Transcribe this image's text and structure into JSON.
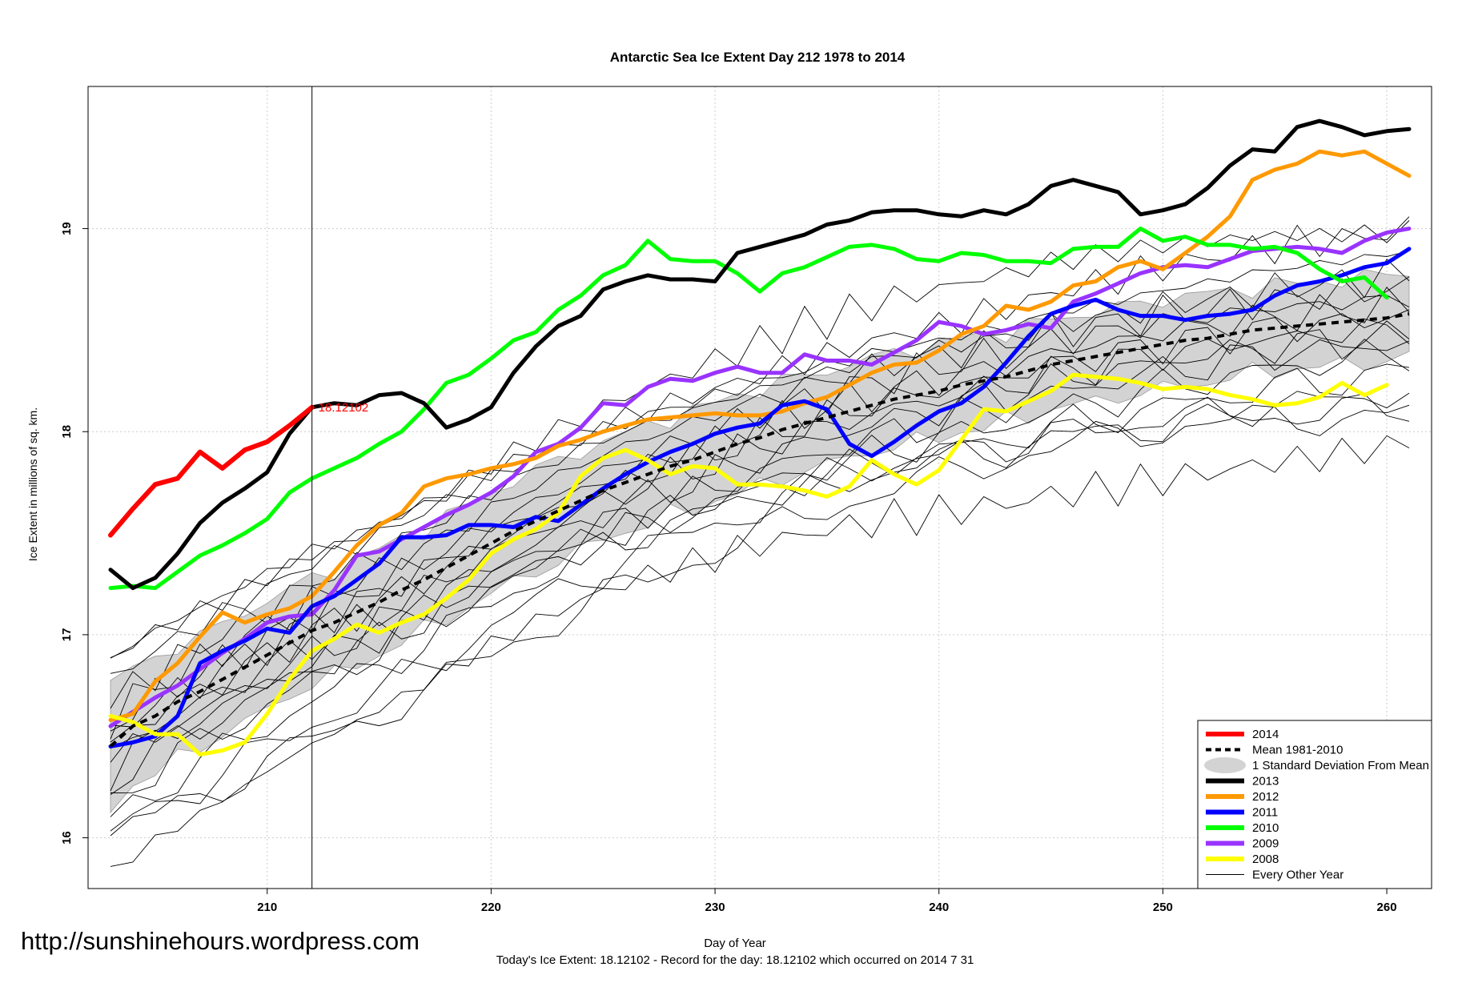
{
  "chart_data": {
    "type": "line",
    "title": "Antarctic Sea Ice Extent Day 212 1978 to 2014",
    "xlabel": "Day of Year",
    "ylabel": "Ice Extent in millions of sq. km.",
    "xlim": [
      202,
      262
    ],
    "ylim": [
      15.75,
      19.7
    ],
    "xticks": [
      210,
      220,
      230,
      240,
      250,
      260
    ],
    "yticks": [
      16,
      17,
      18,
      19
    ],
    "grid": true,
    "legend_position": "bottom-right",
    "current_day_marker": 212,
    "current_value_label": "18.12102",
    "legend": [
      {
        "label": "2014",
        "color": "#ff0000",
        "style": "thick"
      },
      {
        "label": "Mean 1981-2010",
        "color": "#000000",
        "style": "dashed"
      },
      {
        "label": "1 Standard Deviation From Mean",
        "color": "#d3d3d3",
        "style": "band"
      },
      {
        "label": "2013",
        "color": "#000000",
        "style": "thick"
      },
      {
        "label": "2012",
        "color": "#ff9900",
        "style": "thick"
      },
      {
        "label": "2011",
        "color": "#0000ff",
        "style": "thick"
      },
      {
        "label": "2010",
        "color": "#00ff00",
        "style": "thick"
      },
      {
        "label": "2009",
        "color": "#9933ff",
        "style": "thick"
      },
      {
        "label": "2008",
        "color": "#ffff00",
        "style": "thick"
      },
      {
        "label": "Every Other Year",
        "color": "#000000",
        "style": "thin"
      }
    ],
    "x_start": 203,
    "series": [
      {
        "name": "2014",
        "color": "#ff0000",
        "width": 6,
        "x_start": 203,
        "values": [
          17.49,
          17.62,
          17.74,
          17.77,
          17.9,
          17.82,
          17.91,
          17.95,
          18.03,
          18.12
        ]
      },
      {
        "name": "2013",
        "color": "#000000",
        "width": 5,
        "x_start": 203,
        "values": [
          17.32,
          17.23,
          17.28,
          17.4,
          17.55,
          17.65,
          17.72,
          17.8,
          17.99,
          18.12,
          18.14,
          18.13,
          18.18,
          18.19,
          18.14,
          18.02,
          18.06,
          18.12,
          18.29,
          18.42,
          18.52,
          18.57,
          18.7,
          18.74,
          18.77,
          18.75,
          18.75,
          18.74,
          18.88,
          18.91,
          18.94,
          18.97,
          19.02,
          19.04,
          19.08,
          19.09,
          19.09,
          19.07,
          19.06,
          19.09,
          19.07,
          19.12,
          19.21,
          19.24,
          19.21,
          19.18,
          19.07,
          19.09,
          19.12,
          19.2,
          19.31,
          19.39,
          19.38,
          19.5,
          19.53,
          19.5,
          19.46,
          19.48,
          19.49
        ]
      },
      {
        "name": "2012",
        "color": "#ff9900",
        "width": 5,
        "x_start": 203,
        "values": [
          16.58,
          16.61,
          16.77,
          16.86,
          16.99,
          17.11,
          17.06,
          17.1,
          17.13,
          17.19,
          17.31,
          17.44,
          17.54,
          17.6,
          17.73,
          17.77,
          17.79,
          17.82,
          17.84,
          17.87,
          17.93,
          17.96,
          18.0,
          18.03,
          18.06,
          18.07,
          18.08,
          18.09,
          18.08,
          18.08,
          18.1,
          18.14,
          18.17,
          18.23,
          18.29,
          18.33,
          18.34,
          18.4,
          18.48,
          18.52,
          18.62,
          18.6,
          18.64,
          18.72,
          18.74,
          18.81,
          18.84,
          18.8,
          18.88,
          18.96,
          19.06,
          19.24,
          19.29,
          19.32,
          19.38,
          19.36,
          19.38,
          19.32,
          19.26
        ]
      },
      {
        "name": "2011",
        "color": "#0000ff",
        "width": 5,
        "x_start": 203,
        "values": [
          16.45,
          16.47,
          16.5,
          16.6,
          16.86,
          16.92,
          16.97,
          17.03,
          17.01,
          17.14,
          17.19,
          17.27,
          17.35,
          17.48,
          17.48,
          17.49,
          17.54,
          17.54,
          17.53,
          17.58,
          17.56,
          17.64,
          17.72,
          17.79,
          17.85,
          17.9,
          17.94,
          17.99,
          18.02,
          18.04,
          18.13,
          18.15,
          18.11,
          17.94,
          17.88,
          17.95,
          18.03,
          18.1,
          18.14,
          18.22,
          18.34,
          18.47,
          18.58,
          18.62,
          18.65,
          18.6,
          18.57,
          18.57,
          18.55,
          18.57,
          18.58,
          18.6,
          18.67,
          18.72,
          18.74,
          18.77,
          18.81,
          18.83,
          18.9
        ]
      },
      {
        "name": "2010",
        "color": "#00ff00",
        "width": 5,
        "x_start": 203,
        "values": [
          17.23,
          17.24,
          17.23,
          17.31,
          17.39,
          17.44,
          17.5,
          17.57,
          17.7,
          17.77,
          17.82,
          17.87,
          17.94,
          18.0,
          18.11,
          18.24,
          18.28,
          18.36,
          18.45,
          18.49,
          18.6,
          18.67,
          18.77,
          18.82,
          18.94,
          18.85,
          18.84,
          18.84,
          18.78,
          18.69,
          18.78,
          18.81,
          18.86,
          18.91,
          18.92,
          18.9,
          18.85,
          18.84,
          18.88,
          18.87,
          18.84,
          18.84,
          18.83,
          18.9,
          18.91,
          18.91,
          19.0,
          18.94,
          18.96,
          18.92,
          18.92,
          18.9,
          18.91,
          18.88,
          18.8,
          18.74,
          18.76,
          18.66
        ]
      },
      {
        "name": "2009",
        "color": "#9933ff",
        "width": 5,
        "x_start": 203,
        "values": [
          16.55,
          16.62,
          16.69,
          16.75,
          16.83,
          16.91,
          16.98,
          17.06,
          17.09,
          17.1,
          17.22,
          17.39,
          17.41,
          17.47,
          17.53,
          17.59,
          17.64,
          17.7,
          17.78,
          17.9,
          17.94,
          18.02,
          18.14,
          18.13,
          18.22,
          18.26,
          18.25,
          18.29,
          18.32,
          18.29,
          18.29,
          18.38,
          18.35,
          18.35,
          18.33,
          18.39,
          18.45,
          18.54,
          18.52,
          18.48,
          18.5,
          18.53,
          18.51,
          18.64,
          18.68,
          18.73,
          18.78,
          18.81,
          18.82,
          18.81,
          18.85,
          18.89,
          18.9,
          18.91,
          18.9,
          18.88,
          18.94,
          18.98,
          19.0
        ]
      },
      {
        "name": "2008",
        "color": "#ffff00",
        "width": 5,
        "x_start": 203,
        "values": [
          16.6,
          16.57,
          16.51,
          16.51,
          16.41,
          16.43,
          16.47,
          16.61,
          16.78,
          16.92,
          16.98,
          17.05,
          17.01,
          17.06,
          17.1,
          17.18,
          17.27,
          17.4,
          17.47,
          17.52,
          17.6,
          17.78,
          17.87,
          17.91,
          17.86,
          17.79,
          17.83,
          17.82,
          17.74,
          17.74,
          17.73,
          17.71,
          17.68,
          17.73,
          17.86,
          17.79,
          17.74,
          17.81,
          17.96,
          18.11,
          18.1,
          18.15,
          18.2,
          18.28,
          18.27,
          18.26,
          18.24,
          18.21,
          18.22,
          18.21,
          18.18,
          18.16,
          18.13,
          18.14,
          18.17,
          18.24,
          18.18,
          18.23
        ]
      },
      {
        "name": "Mean 1981-2010",
        "color": "#000000",
        "width": 4,
        "dashed": true,
        "x_start": 203,
        "values": [
          16.45,
          16.55,
          16.6,
          16.67,
          16.72,
          16.78,
          16.84,
          16.9,
          16.96,
          17.02,
          17.06,
          17.11,
          17.16,
          17.22,
          17.27,
          17.33,
          17.39,
          17.45,
          17.51,
          17.56,
          17.61,
          17.66,
          17.71,
          17.75,
          17.79,
          17.83,
          17.86,
          17.9,
          17.94,
          17.97,
          18.01,
          18.04,
          18.07,
          18.1,
          18.13,
          18.16,
          18.18,
          18.2,
          18.23,
          18.25,
          18.27,
          18.3,
          18.33,
          18.35,
          18.37,
          18.39,
          18.41,
          18.43,
          18.45,
          18.46,
          18.48,
          18.5,
          18.51,
          18.52,
          18.53,
          18.54,
          18.55,
          18.56,
          18.58
        ]
      }
    ],
    "std_band": {
      "x_start": 203,
      "half_width": [
        0.3,
        0.29,
        0.28,
        0.28,
        0.27,
        0.27,
        0.27,
        0.27,
        0.26,
        0.26,
        0.26,
        0.26,
        0.26,
        0.25,
        0.25,
        0.25,
        0.25,
        0.25,
        0.25,
        0.25,
        0.25,
        0.24,
        0.24,
        0.24,
        0.24,
        0.24,
        0.24,
        0.24,
        0.24,
        0.24,
        0.24,
        0.23,
        0.23,
        0.23,
        0.23,
        0.23,
        0.23,
        0.23,
        0.23,
        0.23,
        0.22,
        0.22,
        0.22,
        0.22,
        0.22,
        0.22,
        0.22,
        0.22,
        0.22,
        0.22,
        0.21,
        0.21,
        0.21,
        0.21,
        0.21,
        0.21,
        0.21,
        0.21,
        0.21
      ]
    },
    "other_years_offsets": [
      -0.48,
      -0.4,
      -0.33,
      -0.27,
      -0.21,
      -0.15,
      -0.1,
      -0.05,
      0.0,
      0.05,
      0.1,
      0.16,
      0.22,
      0.29,
      0.36,
      -0.58,
      0.44
    ]
  },
  "footer": {
    "watermark": "http://sunshinehours.wordpress.com",
    "summary": "Today's Ice Extent: 18.12102  - Record for the day: 18.12102 which occurred on 2014 7 31"
  }
}
